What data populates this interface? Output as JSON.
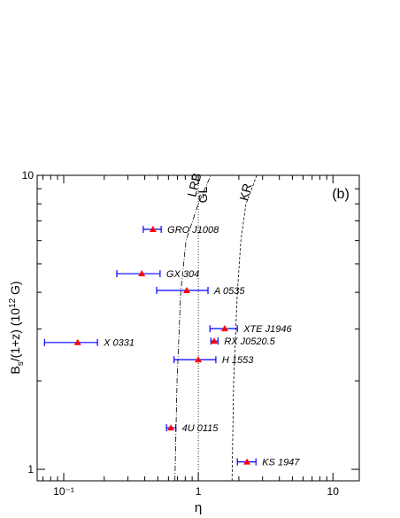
{
  "chart_data": {
    "type": "scatter",
    "annotation": "(b)",
    "xlabel": "η",
    "ylabel": {
      "base": "B",
      "sub": "s",
      "mid": "/(1+z) (10",
      "sup": "12",
      "end": " G)"
    },
    "log_x": true,
    "log_y": true,
    "xlim": [
      0.0635,
      15.7
    ],
    "ylim": [
      0.914,
      10
    ],
    "xticks": [
      {
        "value": 0.1,
        "label": "10⁻¹"
      },
      1,
      10
    ],
    "xminor_ticks": [
      0.07,
      0.08,
      0.09,
      0.2,
      0.3,
      0.4,
      0.5,
      0.6,
      0.7,
      0.8,
      0.9,
      2,
      3,
      4,
      5,
      6,
      7,
      8,
      9
    ],
    "yticks": [
      1,
      10
    ],
    "yminor_ticks": [
      2,
      3,
      4,
      5,
      6,
      7,
      8,
      9
    ],
    "marker_color": "#ff0000",
    "errorbar_color": "#0000ff",
    "points": [
      {
        "name": "GRO J1008",
        "x": 0.46,
        "y": 6.55,
        "x_low": 0.39,
        "x_high": 0.53
      },
      {
        "name": "GX 304",
        "x": 0.38,
        "y": 4.63,
        "x_low": 0.248,
        "x_high": 0.52
      },
      {
        "name": "A 0535",
        "x": 0.82,
        "y": 4.06,
        "x_low": 0.49,
        "x_high": 1.18
      },
      {
        "name": "XTE J1946",
        "x": 1.57,
        "y": 3.01,
        "x_low": 1.22,
        "x_high": 1.95
      },
      {
        "name": "RX J0520.5",
        "x": 1.31,
        "y": 2.73,
        "x_low": 1.24,
        "x_high": 1.4
      },
      {
        "name": "X 0331",
        "x": 0.127,
        "y": 2.7,
        "x_low": 0.072,
        "x_high": 0.178
      },
      {
        "name": "H 1553",
        "x": 1.0,
        "y": 2.36,
        "x_low": 0.66,
        "x_high": 1.35
      },
      {
        "name": "4U 0115",
        "x": 0.625,
        "y": 1.385,
        "x_low": 0.58,
        "x_high": 0.68
      },
      {
        "name": "KS 1947",
        "x": 2.3,
        "y": 1.06,
        "x_low": 1.95,
        "x_high": 2.68
      }
    ],
    "curves": [
      {
        "name": "LRB",
        "dash": "6,2,1,2",
        "x": [
          0.67,
          0.695,
          0.74,
          0.81,
          1.0,
          1.24
        ],
        "y": [
          0.914,
          2,
          4,
          6,
          8,
          10
        ]
      },
      {
        "name": "GL",
        "dash": "1,2",
        "x": [
          1,
          1
        ],
        "y": [
          0.914,
          10
        ]
      },
      {
        "name": "KR",
        "dash": "3,2",
        "x": [
          1.78,
          1.83,
          1.95,
          2.07,
          2.26,
          2.72
        ],
        "y": [
          0.914,
          2,
          4,
          6,
          8,
          10
        ]
      }
    ]
  }
}
